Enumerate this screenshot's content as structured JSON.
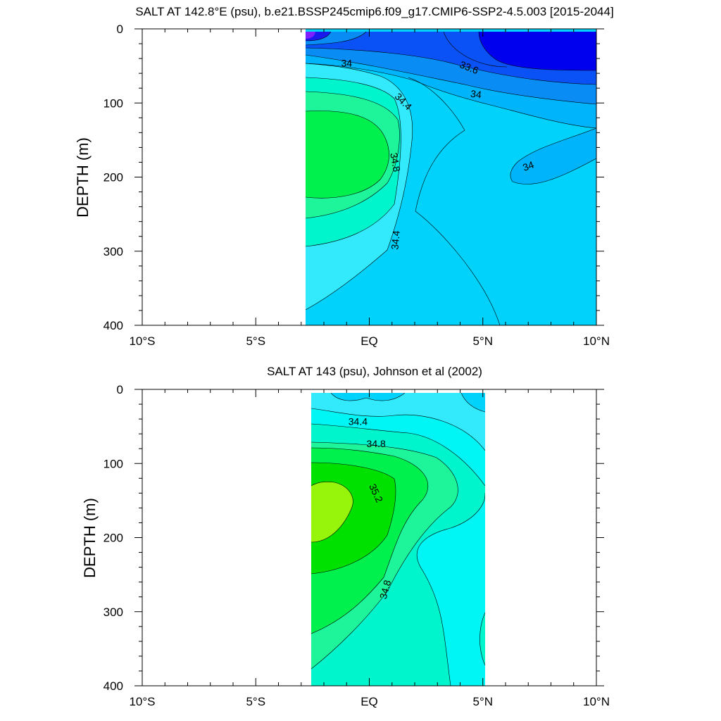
{
  "chart_data": [
    {
      "type": "contour",
      "title": "SALT AT 142.8°E (psu), b.e21.BSSP245cmip6.f09_g17.CMIP6-SSP2-4.5.003 [2015-2044]",
      "xlabel": "",
      "ylabel": "DEPTH (m)",
      "x_ticks": [
        "10°S",
        "5°S",
        "EQ",
        "5°N",
        "10°N"
      ],
      "x_tick_values": [
        -10,
        -5,
        0,
        5,
        10
      ],
      "y_ticks": [
        "0",
        "100",
        "200",
        "300",
        "400"
      ],
      "y_tick_values": [
        0,
        100,
        200,
        300,
        400
      ],
      "xlim": [
        -10,
        10
      ],
      "ylim": [
        400,
        0
      ],
      "data_extent_x": [
        -3,
        10
      ],
      "contour_labels": [
        {
          "text": "34",
          "lat": -1.0,
          "depth": 46,
          "angle": 0
        },
        {
          "text": "33.6",
          "lat": 4.4,
          "depth": 52,
          "angle": 22
        },
        {
          "text": "34",
          "lat": 4.7,
          "depth": 88,
          "angle": 8
        },
        {
          "text": "34.4",
          "lat": 1.5,
          "depth": 98,
          "angle": 45
        },
        {
          "text": "34.8",
          "lat": 1.15,
          "depth": 180,
          "angle": 80
        },
        {
          "text": "34",
          "lat": 7.0,
          "depth": 185,
          "angle": -20
        },
        {
          "text": "34.4",
          "lat": 1.15,
          "depth": 285,
          "angle": -85
        }
      ],
      "colors": {
        "c33_0": "#7f1fff",
        "c33_2": "#1a1aee",
        "c33_4": "#0000ee",
        "c33_6": "#0a52f5",
        "c33_8": "#0a8cf5",
        "c34_0": "#00b4fc",
        "c34_2": "#00d2fc",
        "c34_4": "#33eafc",
        "c34_6": "#00f5cc",
        "c34_8": "#1ef59a",
        "c35_0": "#00f04e"
      }
    },
    {
      "type": "contour",
      "title": "SALT AT 143 (psu), Johnson et al (2002)",
      "xlabel": "",
      "ylabel": "DEPTH (m)",
      "x_ticks": [
        "10°S",
        "5°S",
        "EQ",
        "5°N",
        "10°N"
      ],
      "x_tick_values": [
        -10,
        -5,
        0,
        5,
        10
      ],
      "y_ticks": [
        "0",
        "100",
        "200",
        "300",
        "400"
      ],
      "y_tick_values": [
        0,
        100,
        200,
        300,
        400
      ],
      "xlim": [
        -10,
        10
      ],
      "ylim": [
        400,
        0
      ],
      "data_extent_x": [
        -2.8,
        5
      ],
      "contour_labels": [
        {
          "text": "34.4",
          "lat": -0.5,
          "depth": 43,
          "angle": 0
        },
        {
          "text": "34.8",
          "lat": 0.3,
          "depth": 73,
          "angle": 0
        },
        {
          "text": "35.2",
          "lat": 0.3,
          "depth": 140,
          "angle": 65
        },
        {
          "text": "34.8",
          "lat": 0.7,
          "depth": 270,
          "angle": -75
        }
      ],
      "colors": {
        "c34_2": "#00d2fc",
        "c34_4": "#33eafc",
        "c34_6": "#00f5f5",
        "c34_8": "#00f5cc",
        "c35_0": "#1ef59a",
        "c35_2": "#00f04e",
        "c35_4": "#00e100",
        "c35_6": "#96f50a"
      }
    }
  ]
}
